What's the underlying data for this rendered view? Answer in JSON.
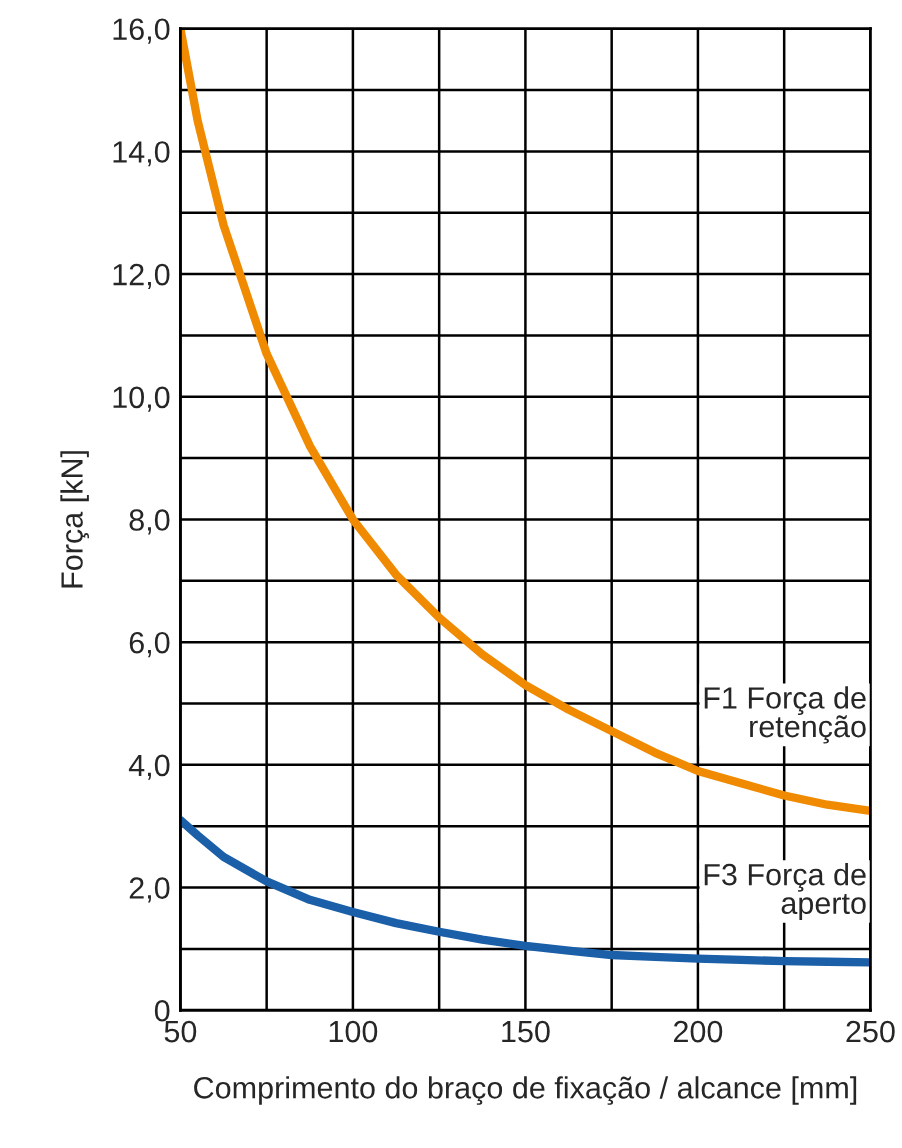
{
  "chart_data": {
    "type": "line",
    "xlabel": "Comprimento do braço de fixação / alcance [mm]",
    "ylabel": "Força [kN]",
    "xlim": [
      50,
      250
    ],
    "ylim": [
      0,
      16
    ],
    "xticks": [
      50,
      {
        "value": 75,
        "label": null
      },
      100,
      {
        "value": 125,
        "label": null
      },
      150,
      {
        "value": 175,
        "label": null
      },
      200,
      {
        "value": 225,
        "label": null
      },
      250
    ],
    "yticks": [
      0,
      {
        "value": 1,
        "label": null
      },
      {
        "value": 2,
        "label": "2,0"
      },
      {
        "value": 3,
        "label": null
      },
      {
        "value": 4,
        "label": "4,0"
      },
      {
        "value": 5,
        "label": null
      },
      {
        "value": 6,
        "label": "6,0"
      },
      {
        "value": 7,
        "label": null
      },
      {
        "value": 8,
        "label": "8,0"
      },
      {
        "value": 9,
        "label": null
      },
      {
        "value": 10,
        "label": "10,0"
      },
      {
        "value": 11,
        "label": null
      },
      {
        "value": 12,
        "label": "12,0"
      },
      {
        "value": 13,
        "label": null
      },
      {
        "value": 14,
        "label": "14,0"
      },
      {
        "value": 15,
        "label": null
      },
      {
        "value": 16,
        "label": "16,0"
      }
    ],
    "grid": true,
    "legend": false,
    "marker": "none",
    "line_style": "solid",
    "x": [
      50,
      55,
      62.5,
      75,
      87.5,
      100,
      112.5,
      125,
      137.5,
      150,
      162.5,
      175,
      187.5,
      200,
      212.5,
      225,
      237.5,
      250
    ],
    "series": [
      {
        "color": "#f08a00",
        "values": [
          16.0,
          14.5,
          12.8,
          10.7,
          9.2,
          8.0,
          7.1,
          6.4,
          5.8,
          5.3,
          4.9,
          4.55,
          4.2,
          3.9,
          3.7,
          3.5,
          3.35,
          3.25
        ]
      },
      {
        "color": "#1a5fa8",
        "values": [
          3.1,
          2.85,
          2.5,
          2.1,
          1.8,
          1.6,
          1.42,
          1.28,
          1.15,
          1.05,
          0.97,
          0.9,
          0.87,
          0.84,
          0.82,
          0.8,
          0.79,
          0.78
        ]
      }
    ],
    "annotations": [
      "F1 Força de\nretenção",
      "F3 Força de\naperto"
    ]
  }
}
